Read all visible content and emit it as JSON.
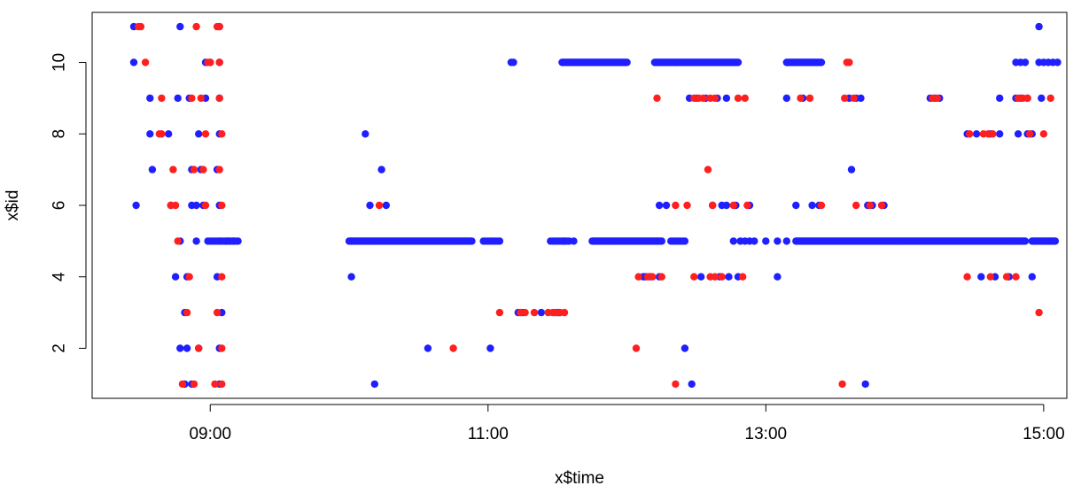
{
  "chart_data": {
    "type": "scatter",
    "xlabel": "x$time",
    "ylabel": "x$id",
    "xlim": [
      "08:09",
      "15:10"
    ],
    "ylim": [
      0.6,
      11.4
    ],
    "x_ticks": [
      "09:00",
      "11:00",
      "13:00",
      "15:00"
    ],
    "y_ticks": [
      2,
      4,
      6,
      8,
      10
    ],
    "grid": false,
    "legend": "none",
    "colors": {
      "blue": "#1f1fff",
      "red": "#ff1f1f"
    },
    "point_groups": [
      {
        "color": "blue",
        "id": 11,
        "times": [
          "08:27",
          "08:47",
          "09:04",
          "14:58"
        ]
      },
      {
        "color": "red",
        "id": 11,
        "times": [
          "08:29",
          "08:30",
          "08:54",
          "09:03",
          "09:04"
        ]
      },
      {
        "color": "blue",
        "id": 10,
        "times": [
          "08:27",
          "08:58",
          "09:00",
          "09:04",
          "11:10",
          "11:11",
          "14:48",
          "14:50",
          "14:52",
          "14:58",
          "15:00",
          "15:02",
          "15:04",
          "15:06"
        ]
      },
      {
        "color": "red",
        "id": 10,
        "times": [
          "08:32",
          "08:59",
          "09:00",
          "09:04",
          "13:35",
          "13:36"
        ]
      },
      {
        "color": "blue",
        "id": 10,
        "range": [
          "11:32",
          "12:00"
        ],
        "step_min": 0.5
      },
      {
        "color": "blue",
        "id": 10,
        "range": [
          "12:12",
          "12:48"
        ],
        "step_min": 0.5
      },
      {
        "color": "blue",
        "id": 10,
        "range": [
          "13:09",
          "13:24"
        ],
        "step_min": 0.5
      },
      {
        "color": "blue",
        "id": 9,
        "times": [
          "08:34",
          "08:46",
          "08:51",
          "08:58",
          "09:04",
          "12:27",
          "12:30",
          "12:34",
          "12:39",
          "12:43",
          "13:09",
          "13:16",
          "13:36",
          "13:39",
          "13:41",
          "14:11",
          "14:13",
          "14:15",
          "14:41",
          "14:48",
          "14:50",
          "14:53",
          "14:59"
        ]
      },
      {
        "color": "red",
        "id": 9,
        "times": [
          "08:39",
          "08:52",
          "08:56",
          "09:04",
          "12:13",
          "12:29",
          "12:31",
          "12:33",
          "12:36",
          "12:38",
          "12:48",
          "12:51",
          "13:15",
          "13:19",
          "13:34",
          "13:38",
          "14:12",
          "14:14",
          "14:49",
          "14:51",
          "14:53",
          "15:03"
        ]
      },
      {
        "color": "blue",
        "id": 8,
        "times": [
          "08:34",
          "08:42",
          "08:55",
          "09:04",
          "10:07",
          "14:27",
          "14:31",
          "14:37",
          "14:41",
          "14:49",
          "14:53",
          "14:55"
        ]
      },
      {
        "color": "red",
        "id": 8,
        "times": [
          "08:38",
          "08:39",
          "08:58",
          "09:05",
          "14:28",
          "14:34",
          "14:36",
          "14:38",
          "14:54",
          "15:00"
        ]
      },
      {
        "color": "blue",
        "id": 7,
        "times": [
          "08:35",
          "08:52",
          "08:56",
          "09:03",
          "10:14",
          "13:37"
        ]
      },
      {
        "color": "red",
        "id": 7,
        "times": [
          "08:44",
          "08:53",
          "08:57",
          "09:04",
          "12:35"
        ]
      },
      {
        "color": "blue",
        "id": 6,
        "times": [
          "08:28",
          "08:43",
          "08:52",
          "08:54",
          "08:57",
          "09:04",
          "10:09",
          "10:16",
          "12:14",
          "12:17",
          "12:37",
          "12:41",
          "12:43",
          "12:47",
          "12:53",
          "13:13",
          "13:20",
          "13:23",
          "13:44",
          "13:46",
          "13:51"
        ]
      },
      {
        "color": "red",
        "id": 6,
        "times": [
          "08:43",
          "08:45",
          "08:58",
          "09:05",
          "10:13",
          "12:21",
          "12:26",
          "12:37",
          "12:46",
          "12:52",
          "13:24",
          "13:39",
          "13:45",
          "13:50"
        ]
      },
      {
        "color": "blue",
        "id": 5,
        "times": [
          "08:47",
          "08:54",
          "09:07",
          "09:08",
          "09:10",
          "11:33",
          "11:35",
          "11:37",
          "12:46",
          "12:49",
          "12:51",
          "12:53",
          "12:55",
          "13:00",
          "13:05",
          "13:09"
        ]
      },
      {
        "color": "red",
        "id": 5,
        "times": [
          "08:46",
          "09:04"
        ]
      },
      {
        "color": "blue",
        "id": 5,
        "range": [
          "08:59",
          "09:12"
        ],
        "step_min": 1
      },
      {
        "color": "blue",
        "id": 5,
        "range": [
          "10:00",
          "10:53"
        ],
        "step_min": 0.5
      },
      {
        "color": "blue",
        "id": 5,
        "range": [
          "10:58",
          "11:05"
        ],
        "step_min": 1
      },
      {
        "color": "blue",
        "id": 5,
        "range": [
          "11:27",
          "11:34"
        ],
        "step_min": 1
      },
      {
        "color": "blue",
        "id": 5,
        "range": [
          "11:45",
          "12:15"
        ],
        "step_min": 0.5
      },
      {
        "color": "blue",
        "id": 5,
        "range": [
          "12:19",
          "12:25"
        ],
        "step_min": 1
      },
      {
        "color": "blue",
        "id": 5,
        "range": [
          "13:13",
          "14:52"
        ],
        "step_min": 0.5
      },
      {
        "color": "blue",
        "id": 5,
        "range": [
          "14:55",
          "15:05"
        ],
        "step_min": 0.5
      },
      {
        "color": "blue",
        "id": 4,
        "times": [
          "08:45",
          "08:50",
          "09:03",
          "10:01",
          "12:07",
          "12:08",
          "12:10",
          "12:14",
          "12:32",
          "12:40",
          "12:44",
          "12:48",
          "13:05",
          "14:33",
          "14:39",
          "14:45",
          "14:55"
        ]
      },
      {
        "color": "red",
        "id": 4,
        "times": [
          "08:51",
          "09:05",
          "12:05",
          "12:09",
          "12:11",
          "12:15",
          "12:29",
          "12:36",
          "12:38",
          "12:41",
          "12:50",
          "14:27",
          "14:37",
          "14:44",
          "14:48"
        ]
      },
      {
        "color": "blue",
        "id": 3,
        "times": [
          "08:49",
          "09:05",
          "11:13",
          "11:15",
          "11:23",
          "11:30",
          "11:31"
        ]
      },
      {
        "color": "red",
        "id": 3,
        "times": [
          "08:50",
          "09:03",
          "11:05",
          "11:14",
          "11:16",
          "11:20",
          "11:26",
          "11:28",
          "11:29",
          "11:31",
          "11:33",
          "14:58"
        ]
      },
      {
        "color": "blue",
        "id": 2,
        "times": [
          "08:47",
          "08:50",
          "08:55",
          "09:04",
          "10:34",
          "11:01",
          "12:25"
        ]
      },
      {
        "color": "red",
        "id": 2,
        "times": [
          "08:55",
          "09:05",
          "10:45",
          "12:04"
        ]
      },
      {
        "color": "blue",
        "id": 1,
        "times": [
          "08:49",
          "08:52",
          "09:04",
          "10:11",
          "12:28",
          "13:43"
        ]
      },
      {
        "color": "red",
        "id": 1,
        "times": [
          "08:48",
          "08:53",
          "09:02",
          "09:05",
          "12:21",
          "13:33"
        ]
      }
    ]
  }
}
